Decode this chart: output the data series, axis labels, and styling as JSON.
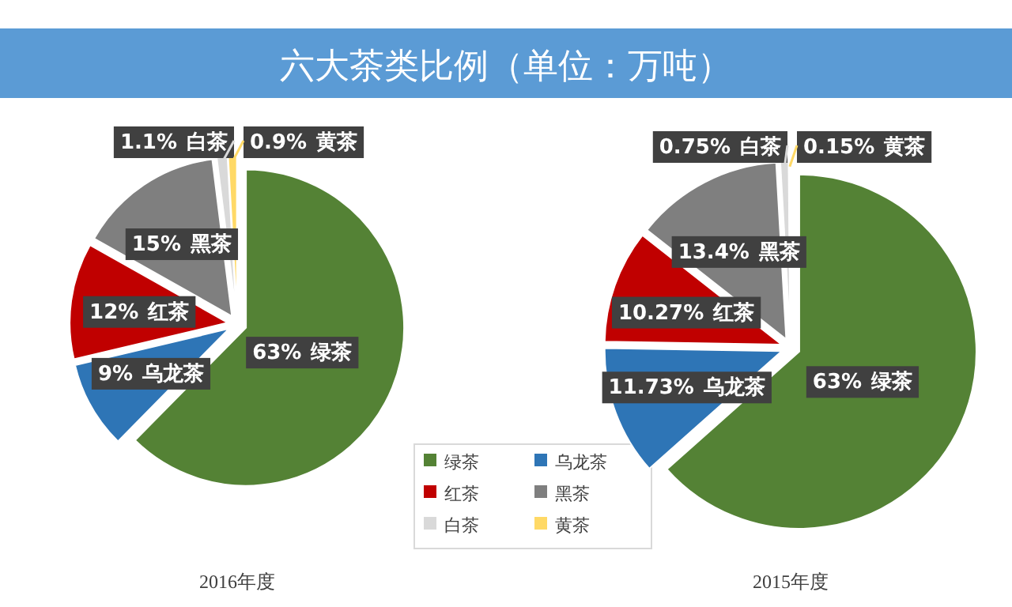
{
  "chart_data": [
    {
      "type": "pie",
      "title": "六大茶类比例（单位：万吨）",
      "xlabel": "2016年度",
      "categories": [
        "绿茶",
        "乌龙茶",
        "红茶",
        "黑茶",
        "白茶",
        "黄茶"
      ],
      "values": [
        63,
        9,
        12,
        15,
        1.1,
        0.9
      ],
      "value_labels": [
        "63%",
        "9%",
        "12%",
        "15%",
        "1.1%",
        "0.9%"
      ],
      "colors": [
        "#548235",
        "#2e75b6",
        "#c00000",
        "#7f7f7f",
        "#d9d9d9",
        "#ffd966"
      ],
      "legend": "bottom right"
    },
    {
      "type": "pie",
      "xlabel": "2015年度",
      "categories": [
        "绿茶",
        "乌龙茶",
        "红茶",
        "黑茶",
        "白茶",
        "黄茶"
      ],
      "values": [
        63,
        11.73,
        10.27,
        13.4,
        0.75,
        0.15
      ],
      "value_labels": [
        "63%",
        "11.73%",
        "10.27%",
        "13.4%",
        "0.75%",
        "0.15%"
      ],
      "colors": [
        "#548235",
        "#2e75b6",
        "#c00000",
        "#7f7f7f",
        "#d9d9d9",
        "#ffd966"
      ]
    }
  ]
}
